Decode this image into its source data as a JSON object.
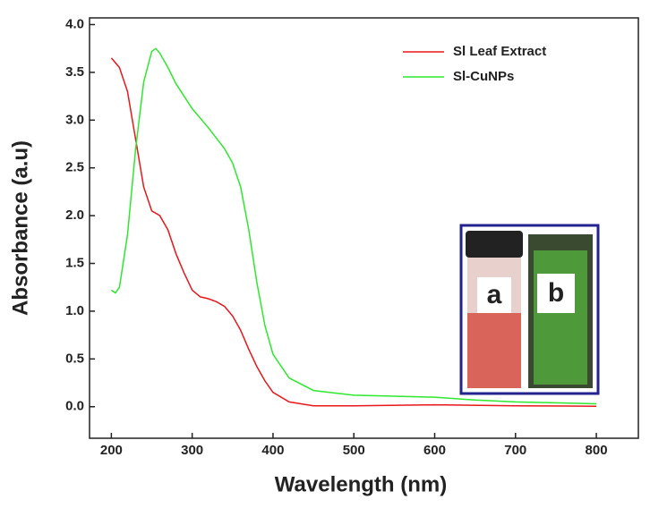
{
  "chart_data": {
    "type": "line",
    "x_label": "Wavelength (nm)",
    "y_label": "Absorbance (a.u)",
    "xlim": [
      173,
      852
    ],
    "ylim": [
      -0.33,
      4.07
    ],
    "xticks": [
      200,
      300,
      400,
      500,
      600,
      700,
      800
    ],
    "yticks": [
      {
        "value": 0,
        "label": "0.0"
      },
      0.5,
      {
        "value": 1,
        "label": "1.0"
      },
      1.5,
      {
        "value": 2,
        "label": "2.0"
      },
      2.5,
      {
        "value": 3,
        "label": "3.0"
      },
      3.5,
      {
        "value": 4,
        "label": "4.0"
      }
    ],
    "legend": "upper right",
    "inset_labels": [
      "a",
      "b"
    ],
    "series": [
      {
        "name": "Sl Leaf Extract",
        "color": "#e8171b",
        "x": [
          200,
          210,
          220,
          230,
          240,
          250,
          260,
          270,
          280,
          290,
          300,
          310,
          320,
          330,
          340,
          350,
          360,
          370,
          380,
          390,
          400,
          420,
          450,
          500,
          600,
          700,
          800
        ],
        "values": [
          3.65,
          3.55,
          3.3,
          2.8,
          2.3,
          2.05,
          2.0,
          1.85,
          1.6,
          1.4,
          1.22,
          1.15,
          1.13,
          1.1,
          1.05,
          0.95,
          0.8,
          0.6,
          0.42,
          0.27,
          0.15,
          0.05,
          0.01,
          0.01,
          0.02,
          0.01,
          0.005
        ]
      },
      {
        "name": "Sl-CuNPs",
        "color": "#2ee82e",
        "x": [
          200,
          205,
          210,
          220,
          230,
          240,
          250,
          255,
          260,
          270,
          280,
          300,
          320,
          340,
          350,
          360,
          370,
          380,
          390,
          400,
          420,
          450,
          500,
          550,
          600,
          650,
          700,
          800
        ],
        "values": [
          1.22,
          1.19,
          1.25,
          1.8,
          2.7,
          3.4,
          3.72,
          3.75,
          3.7,
          3.55,
          3.38,
          3.12,
          2.92,
          2.7,
          2.55,
          2.3,
          1.85,
          1.3,
          0.85,
          0.55,
          0.3,
          0.17,
          0.12,
          0.11,
          0.1,
          0.07,
          0.05,
          0.03
        ]
      }
    ]
  }
}
